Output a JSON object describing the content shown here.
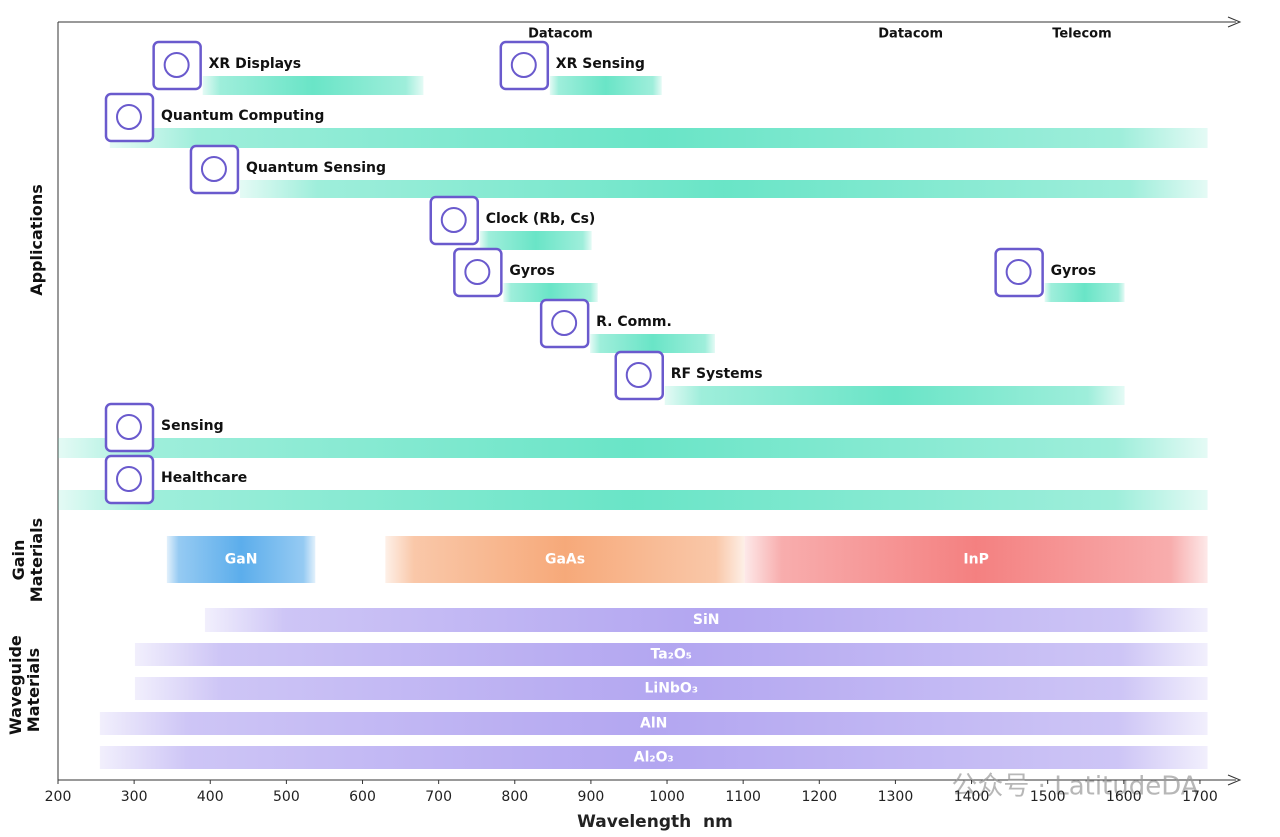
{
  "chart_data": {
    "type": "range",
    "xlabel": "Wavelength  nm",
    "xlim": [
      200,
      1750
    ],
    "xticks": [
      200,
      300,
      400,
      500,
      600,
      700,
      800,
      900,
      1000,
      1100,
      1200,
      1300,
      1400,
      1500,
      1600,
      1700
    ],
    "annotations": [
      {
        "text": "Datacom",
        "x": 860
      },
      {
        "text": "Datacom",
        "x": 1320
      },
      {
        "text": "Telecom",
        "x": 1545
      }
    ],
    "watermark": "公众号 · LatitudeDA",
    "groups": [
      {
        "label": "Applications",
        "kind": "application",
        "rows": [
          [
            {
              "name": "XR Displays",
              "start": 390,
              "end": 680,
              "color": "#4fe0bd"
            },
            {
              "name": "XR Sensing",
              "start": 846,
              "end": 993,
              "color": "#4fe0bd"
            }
          ],
          [
            {
              "name": "Quantum Computing",
              "start": 268,
              "end": 1710,
              "color": "#4fe0bd"
            }
          ],
          [
            {
              "name": "Quantum Sensing",
              "start": 439,
              "end": 1710,
              "color": "#4fe0bd"
            }
          ],
          [
            {
              "name": "Clock (Rb, Cs)",
              "start": 754,
              "end": 901,
              "color": "#4fe0bd"
            }
          ],
          [
            {
              "name": "Gyros",
              "start": 785,
              "end": 909,
              "color": "#4fe0bd"
            },
            {
              "name": "Gyros",
              "start": 1496,
              "end": 1601,
              "color": "#4fe0bd"
            }
          ],
          [
            {
              "name": "R. Comm.",
              "start": 899,
              "end": 1063,
              "color": "#4fe0bd"
            }
          ],
          [
            {
              "name": "RF Systems",
              "start": 997,
              "end": 1601,
              "color": "#4fe0bd"
            }
          ],
          [
            {
              "name": "Sensing",
              "start": 200,
              "end": 1710,
              "color": "#4fe0bd"
            }
          ],
          [
            {
              "name": "Healthcare",
              "start": 200,
              "end": 1710,
              "color": "#4fe0bd"
            }
          ]
        ]
      },
      {
        "label": "Gain Materials",
        "kind": "material",
        "rows": [
          [
            {
              "name": "GaN",
              "start": 343,
              "end": 538,
              "color": "#3f9fe8"
            },
            {
              "name": "GaAs",
              "start": 630,
              "end": 1102,
              "color": "#f59a62"
            },
            {
              "name": "InP",
              "start": 1102,
              "end": 1710,
              "color": "#f26a6a"
            }
          ]
        ]
      },
      {
        "label": "Waveguide Materials",
        "kind": "material",
        "rows": [
          [
            {
              "name": "SiN",
              "start": 393,
              "end": 1710,
              "color": "#a596ee"
            }
          ],
          [
            {
              "name": "Ta₂O₅",
              "start": 301,
              "end": 1710,
              "color": "#a596ee"
            }
          ],
          [
            {
              "name": "LiNbO₃",
              "start": 301,
              "end": 1710,
              "color": "#a596ee"
            }
          ],
          [
            {
              "name": "AlN",
              "start": 255,
              "end": 1710,
              "color": "#a596ee"
            }
          ],
          [
            {
              "name": "Al₂O₃",
              "start": 255,
              "end": 1710,
              "color": "#a596ee"
            }
          ]
        ]
      }
    ]
  }
}
